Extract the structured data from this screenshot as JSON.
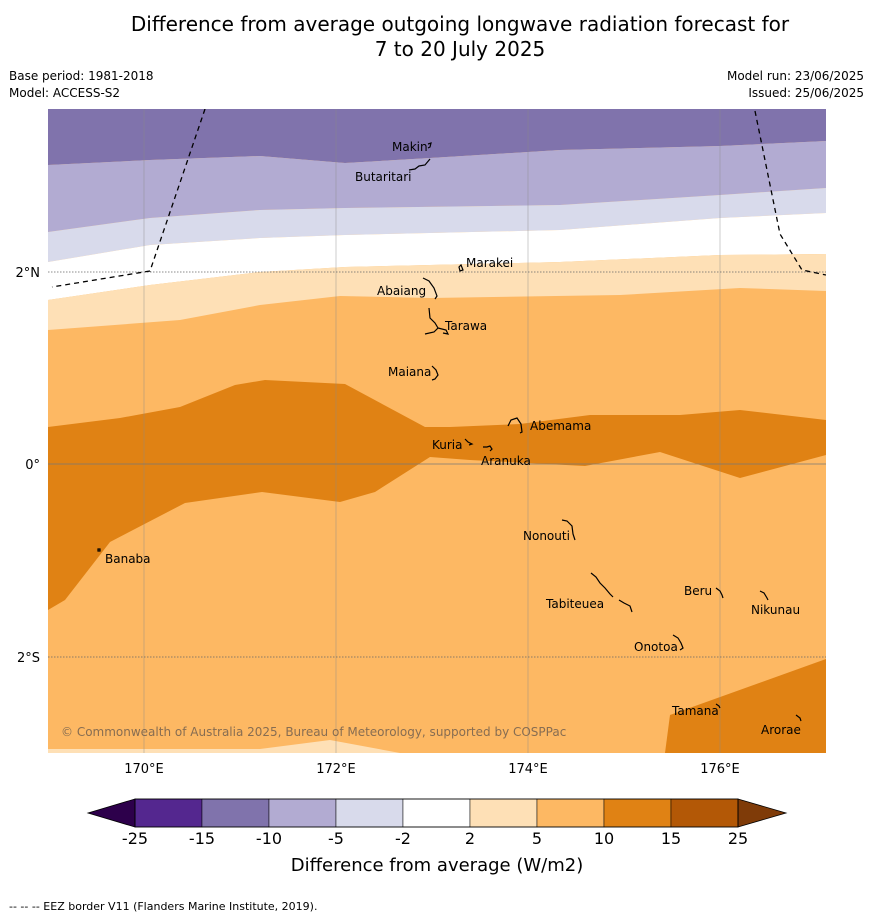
{
  "title": {
    "line1": "Difference from average outgoing longwave radiation forecast for",
    "line2": "7 to 20 July 2025"
  },
  "meta": {
    "base_period": "Base period: 1981-2018",
    "model": "Model: ACCESS-S2",
    "model_run": "Model run: 23/06/2025",
    "issued": "Issued: 25/06/2025"
  },
  "map": {
    "lon_labels": [
      "170°E",
      "172°E",
      "174°E",
      "176°E"
    ],
    "lat_labels": [
      "2°N",
      "0°",
      "2°S"
    ],
    "places": [
      {
        "name": "Makin"
      },
      {
        "name": "Butaritari"
      },
      {
        "name": "Marakei"
      },
      {
        "name": "Abaiang"
      },
      {
        "name": "Tarawa"
      },
      {
        "name": "Maiana"
      },
      {
        "name": "Abemama"
      },
      {
        "name": "Kuria"
      },
      {
        "name": "Aranuka"
      },
      {
        "name": "Nonouti"
      },
      {
        "name": "Banaba"
      },
      {
        "name": "Tabiteuea"
      },
      {
        "name": "Beru"
      },
      {
        "name": "Nikunau"
      },
      {
        "name": "Onotoa"
      },
      {
        "name": "Tamana"
      },
      {
        "name": "Arorae"
      }
    ],
    "copyright": "© Commonwealth of Australia 2025, Bureau of Meteorology, supported by COSPPac"
  },
  "colorbar": {
    "ticks": [
      "-25",
      "-15",
      "-10",
      "-5",
      "-2",
      "2",
      "5",
      "10",
      "15",
      "25"
    ],
    "colors": [
      "#54278f",
      "#8073ac",
      "#b2abd2",
      "#d8daeb",
      "#ffffff",
      "#fee0b6",
      "#fdb863",
      "#e08214",
      "#b35806"
    ],
    "under_color": "#2d004b",
    "over_color": "#7f3b08",
    "label": "Difference from average (W/m2)"
  },
  "footer": "--  --  -- EEZ border V11 (Flanders Marine Institute, 2019)."
}
